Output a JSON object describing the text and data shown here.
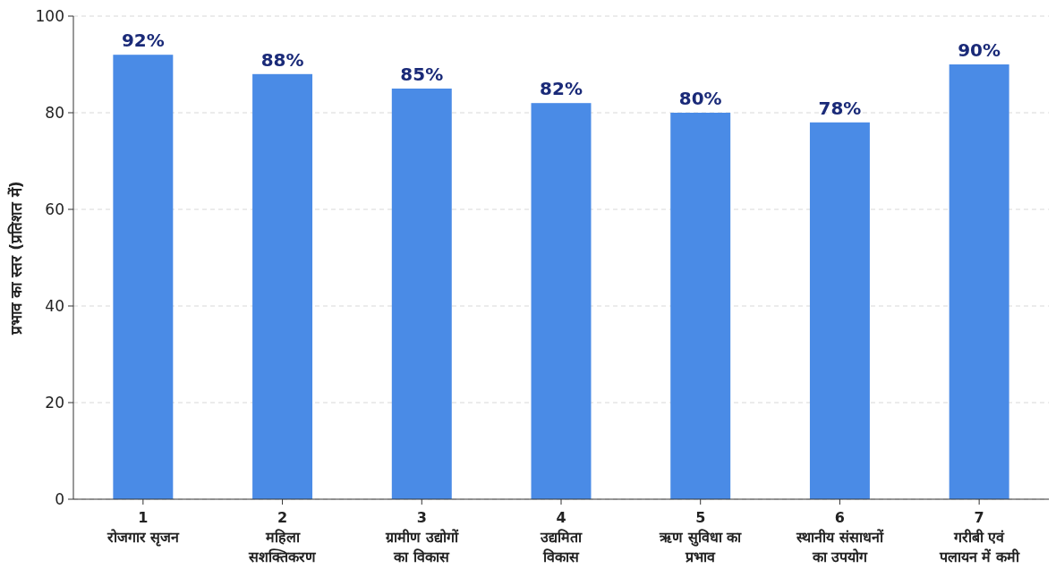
{
  "chart_data": {
    "type": "bar",
    "ylabel": "प्रभाव का स्तर (प्रतिशत में)",
    "categories": [
      "1\nरोजगार सृजन",
      "2\nमहिला\nसशक्तिकरण",
      "3\nग्रामीण उद्योगों\nका विकास",
      "4\nउद्यमिता\nविकास",
      "5\nऋण सुविधा का\nप्रभाव",
      "6\nस्थानीय संसाधनों\nका उपयोग",
      "7\nगरीबी एवं\nपलायन में कमी"
    ],
    "values": [
      92,
      88,
      85,
      82,
      80,
      78,
      90
    ],
    "value_labels": [
      "92%",
      "88%",
      "85%",
      "82%",
      "80%",
      "78%",
      "90%"
    ],
    "color": "#4a8be6",
    "ylim": [
      0,
      100
    ],
    "yticks": [
      0,
      20,
      40,
      60,
      80,
      100
    ],
    "grid": "y"
  }
}
